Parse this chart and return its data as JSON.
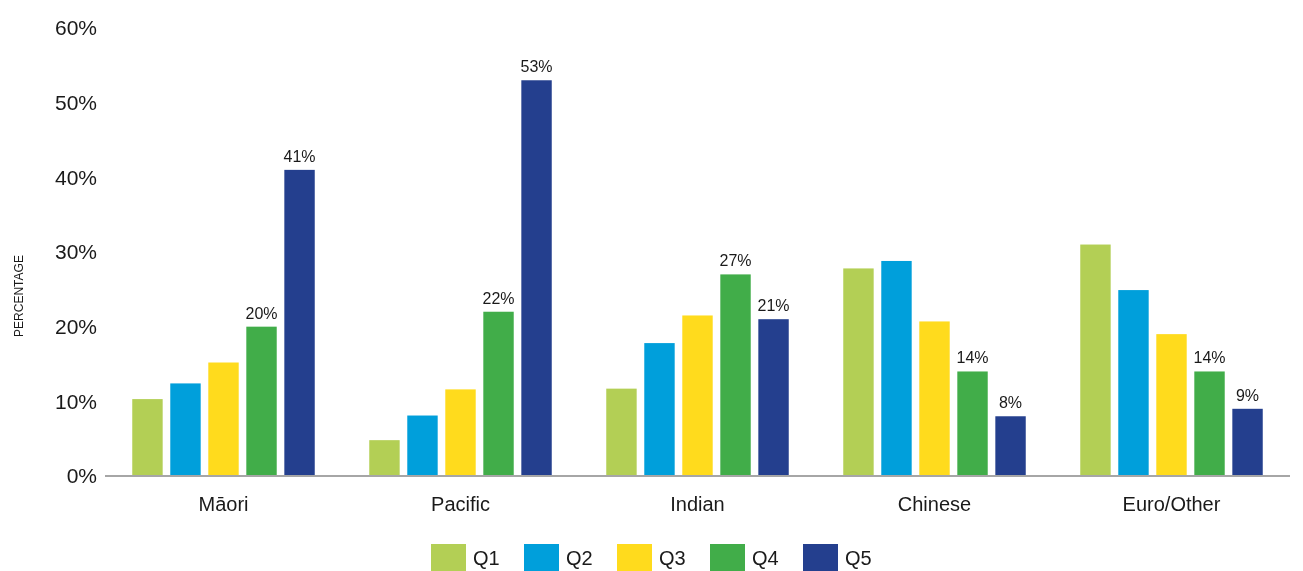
{
  "chart_data": {
    "type": "bar",
    "ylabel": "PERCENTAGE",
    "categories": [
      "Māori",
      "Pacific",
      "Indian",
      "Chinese",
      "Euro/Other"
    ],
    "series": [
      {
        "name": "Q1",
        "color": "#b3cf55",
        "values": [
          10.3,
          4.8,
          11.7,
          27.8,
          31.0
        ]
      },
      {
        "name": "Q2",
        "color": "#009fdb",
        "values": [
          12.4,
          8.1,
          17.8,
          28.8,
          24.9
        ]
      },
      {
        "name": "Q3",
        "color": "#ffdb1d",
        "values": [
          15.2,
          11.6,
          21.5,
          20.7,
          19.0
        ]
      },
      {
        "name": "Q4",
        "color": "#41ad49",
        "values": [
          20,
          22,
          27,
          14,
          14
        ],
        "value_labels": [
          "20%",
          "22%",
          "27%",
          "14%",
          "14%"
        ]
      },
      {
        "name": "Q5",
        "color": "#243f8e",
        "values": [
          41,
          53,
          21,
          8,
          9
        ],
        "value_labels": [
          "41%",
          "53%",
          "21%",
          "8%",
          "9%"
        ]
      }
    ],
    "ylim": [
      0,
      60
    ],
    "yticks": [
      {
        "value": 0,
        "label": "0%"
      },
      {
        "value": 10,
        "label": "10%"
      },
      {
        "value": 20,
        "label": "20%"
      },
      {
        "value": 30,
        "label": "30%"
      },
      {
        "value": 40,
        "label": "40%"
      },
      {
        "value": 50,
        "label": "50%"
      },
      {
        "value": 60,
        "label": "60%"
      }
    ],
    "grid": false,
    "legend": "bottom"
  }
}
